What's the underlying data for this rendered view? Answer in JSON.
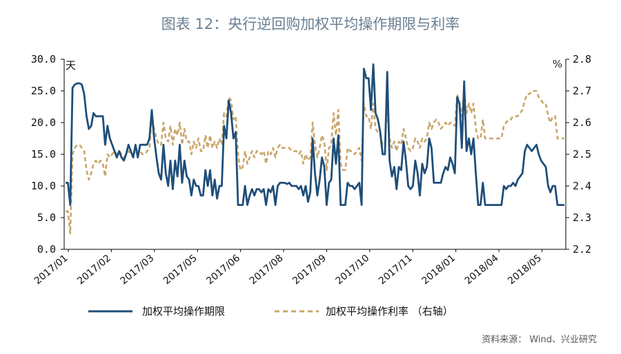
{
  "chart_data": {
    "type": "line",
    "title": "图表 12：央行逆回购加权平均操作期限与利率",
    "left_unit": "天",
    "right_unit": "%",
    "left_axis": {
      "min": 0,
      "max": 30,
      "ticks": [
        "0.0",
        "5.0",
        "10.0",
        "15.0",
        "20.0",
        "25.0",
        "30.0"
      ]
    },
    "right_axis": {
      "min": 2.2,
      "max": 2.8,
      "ticks": [
        "2.2",
        "2.3",
        "2.4",
        "2.5",
        "2.6",
        "2.7",
        "2.8"
      ]
    },
    "x_tick_labels": [
      "2017/01",
      "2017/02",
      "2017/03",
      "2017/05",
      "2017/06",
      "2017/08",
      "2017/09",
      "2017/10",
      "2017/11",
      "2018/01",
      "2018/04",
      "2018/05"
    ],
    "series": [
      {
        "name": "加权平均操作期限",
        "axis": "left",
        "color": "#1f4e79",
        "style": "solid",
        "values": [
          10.5,
          10.5,
          7,
          25.5,
          26,
          26.2,
          26.2,
          26,
          24.5,
          21,
          19,
          19.5,
          21.5,
          21,
          21,
          21,
          21,
          16.5,
          19.5,
          17.5,
          16.5,
          15.5,
          14.5,
          15.5,
          14.5,
          14,
          15,
          16.5,
          15.5,
          14.5,
          16.5,
          14.5,
          16.5,
          16.5,
          16.5,
          16.5,
          17.5,
          22,
          17.5,
          14.5,
          12,
          11,
          16.5,
          12,
          10,
          14,
          9.5,
          14,
          11.5,
          16.5,
          10.5,
          14,
          11.5,
          11,
          8.5,
          11,
          10,
          10,
          8.5,
          8.5,
          12.5,
          10,
          12.5,
          8.5,
          11,
          8,
          10,
          10,
          19.5,
          17.5,
          23.5,
          21.5,
          17.5,
          18.5,
          7,
          7,
          7,
          10,
          7,
          8.5,
          9.5,
          8.5,
          9.5,
          9.5,
          9,
          9.5,
          7,
          9.5,
          9,
          10,
          7,
          10,
          10.5,
          10.5,
          10.5,
          10.3,
          10.5,
          10,
          10,
          10,
          9.5,
          10,
          8.5,
          10,
          7.5,
          9,
          17.5,
          12,
          8.5,
          11,
          14.5,
          13,
          7,
          10.5,
          11,
          17.5,
          13.5,
          18,
          7,
          7,
          7,
          10.5,
          10,
          10,
          9.5,
          10,
          10.5,
          7,
          28.5,
          27,
          27,
          22,
          29.2,
          21.5,
          20.5,
          18.5,
          15,
          15,
          28,
          14,
          11.5,
          13,
          9.5,
          13,
          12.5,
          17,
          14,
          10,
          9.5,
          10,
          14,
          12,
          8.5,
          13.5,
          12,
          13,
          17.5,
          16,
          10.5,
          10.5,
          10.5,
          10.5,
          12,
          13,
          12.5,
          14.5,
          13.5,
          12,
          24,
          23,
          16,
          26.5,
          15.5,
          17.5,
          15,
          17.5,
          12,
          7,
          7,
          10.5,
          7,
          7,
          7,
          7,
          7,
          7,
          7,
          7,
          10,
          9.5,
          10,
          10,
          10.5,
          10,
          11,
          11.5,
          12,
          15.5,
          16.5,
          16,
          15.5,
          16,
          16.5,
          15,
          14,
          13.5,
          13,
          10,
          9,
          10,
          10,
          7,
          7,
          7,
          7
        ]
      },
      {
        "name": "加权平均操作利率 （右轴）",
        "axis": "right",
        "color": "#c9a66b",
        "style": "dashed",
        "values": [
          2.32,
          2.32,
          2.25,
          2.5,
          2.52,
          2.53,
          2.53,
          2.52,
          2.51,
          2.45,
          2.42,
          2.44,
          2.47,
          2.48,
          2.47,
          2.48,
          2.47,
          2.43,
          2.5,
          2.49,
          2.5,
          2.51,
          2.5,
          2.51,
          2.5,
          2.49,
          2.5,
          2.51,
          2.5,
          2.5,
          2.51,
          2.5,
          2.51,
          2.5,
          2.5,
          2.51,
          2.52,
          2.62,
          2.58,
          2.55,
          2.53,
          2.53,
          2.6,
          2.55,
          2.54,
          2.59,
          2.53,
          2.58,
          2.56,
          2.6,
          2.53,
          2.58,
          2.54,
          2.54,
          2.5,
          2.54,
          2.52,
          2.55,
          2.51,
          2.51,
          2.56,
          2.52,
          2.56,
          2.52,
          2.54,
          2.52,
          2.55,
          2.53,
          2.63,
          2.62,
          2.68,
          2.67,
          2.61,
          2.62,
          2.5,
          2.45,
          2.46,
          2.51,
          2.47,
          2.49,
          2.51,
          2.49,
          2.51,
          2.51,
          2.5,
          2.51,
          2.47,
          2.51,
          2.5,
          2.52,
          2.49,
          2.52,
          2.53,
          2.52,
          2.52,
          2.52,
          2.52,
          2.51,
          2.51,
          2.51,
          2.5,
          2.51,
          2.47,
          2.5,
          2.48,
          2.49,
          2.6,
          2.53,
          2.49,
          2.52,
          2.56,
          2.54,
          2.45,
          2.52,
          2.53,
          2.63,
          2.56,
          2.64,
          2.47,
          2.45,
          2.45,
          2.52,
          2.51,
          2.51,
          2.5,
          2.51,
          2.52,
          2.48,
          2.66,
          2.62,
          2.62,
          2.58,
          2.66,
          2.58,
          2.57,
          2.56,
          2.53,
          2.53,
          2.65,
          2.55,
          2.52,
          2.54,
          2.51,
          2.54,
          2.53,
          2.58,
          2.55,
          2.52,
          2.51,
          2.52,
          2.55,
          2.54,
          2.52,
          2.55,
          2.54,
          2.55,
          2.6,
          2.58,
          2.6,
          2.61,
          2.6,
          2.58,
          2.59,
          2.6,
          2.59,
          2.6,
          2.6,
          2.59,
          2.69,
          2.66,
          2.62,
          2.7,
          2.63,
          2.66,
          2.63,
          2.66,
          2.58,
          2.55,
          2.55,
          2.61,
          2.55,
          2.55,
          2.55,
          2.55,
          2.55,
          2.55,
          2.55,
          2.55,
          2.59,
          2.6,
          2.61,
          2.61,
          2.62,
          2.62,
          2.62,
          2.63,
          2.64,
          2.67,
          2.69,
          2.69,
          2.7,
          2.7,
          2.7,
          2.68,
          2.67,
          2.66,
          2.66,
          2.62,
          2.6,
          2.62,
          2.62,
          2.55,
          2.55,
          2.55,
          2.55
        ]
      }
    ],
    "legend": [
      {
        "label": "加权平均操作期限",
        "style": "solid"
      },
      {
        "label": "加权平均操作利率 （右轴）",
        "style": "dashed"
      }
    ],
    "source": "资料来源： Wind、兴业研究"
  }
}
